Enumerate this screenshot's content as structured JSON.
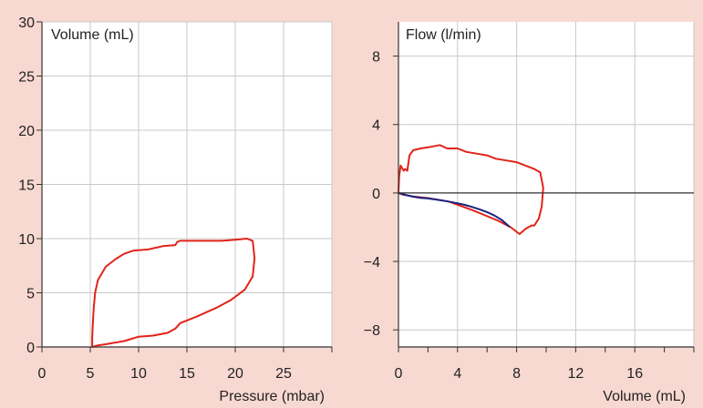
{
  "chart_data": [
    {
      "type": "line",
      "title": "",
      "xlabel": "Pressure (mbar)",
      "ylabel": "Volume (mL)",
      "xlim": [
        0,
        30
      ],
      "ylim": [
        0,
        30
      ],
      "xticks": [
        0,
        5,
        10,
        15,
        20,
        25
      ],
      "xtick_labels": [
        "0",
        "5",
        "10",
        "15",
        "20",
        "25"
      ],
      "yticks": [
        0,
        5,
        10,
        15,
        20,
        25,
        30
      ],
      "ytick_labels": [
        "0",
        "5",
        "10",
        "15",
        "20",
        "25",
        "30"
      ],
      "grid": true,
      "series": [
        {
          "color": "#e2231a",
          "x": [
            5.2,
            5.8,
            6.6,
            8.5,
            10,
            11.5,
            13,
            13.8,
            14.3,
            16,
            18,
            19.5,
            21,
            21.8,
            22,
            21.8,
            21.2,
            20,
            18.6,
            17.3,
            16.3,
            15.2,
            14.3,
            14,
            13.8,
            12.5,
            11,
            9.5,
            8.5,
            7.6,
            6.6,
            5.8,
            5.5,
            5.35,
            5.25,
            5.2,
            5.2
          ],
          "y": [
            0,
            0.15,
            0.25,
            0.55,
            0.95,
            1.05,
            1.3,
            1.7,
            2.2,
            2.8,
            3.6,
            4.3,
            5.3,
            6.5,
            8.2,
            9.8,
            10,
            9.9,
            9.8,
            9.8,
            9.8,
            9.8,
            9.8,
            9.7,
            9.4,
            9.3,
            9,
            8.9,
            8.6,
            8.1,
            7.4,
            6.2,
            5.0,
            3.5,
            2.0,
            0.8,
            0
          ]
        }
      ]
    },
    {
      "type": "line",
      "title": "",
      "xlabel": "Volume (mL)",
      "ylabel": "Flow (l/min)",
      "xlim": [
        0,
        20
      ],
      "ylim": [
        -9,
        10
      ],
      "xticks": [
        0,
        4,
        8,
        12,
        16
      ],
      "xtick_labels": [
        "0",
        "4",
        "8",
        "12",
        "16"
      ],
      "yticks": [
        -8,
        -4,
        0,
        4,
        8
      ],
      "ytick_labels": [
        "−8",
        "−4",
        "0",
        "4",
        "8"
      ],
      "grid": true,
      "series": [
        {
          "color": "#e2231a",
          "x": [
            0,
            0.05,
            0.15,
            0.35,
            0.45,
            0.6,
            0.75,
            1.0,
            1.5,
            2.2,
            2.8,
            3.3,
            4.0,
            4.6,
            5.3,
            6.0,
            6.6,
            7.3,
            8.0,
            8.6,
            9.2,
            9.6,
            9.8,
            9.7,
            9.5,
            9.2,
            9.0,
            8.6,
            8.2,
            7.6,
            6.7,
            5.0,
            3.4,
            2.0,
            1.0,
            0.3,
            0
          ],
          "y": [
            0,
            1.0,
            1.6,
            1.3,
            1.4,
            1.3,
            2.2,
            2.5,
            2.6,
            2.7,
            2.8,
            2.6,
            2.6,
            2.4,
            2.3,
            2.2,
            2.0,
            1.9,
            1.8,
            1.6,
            1.4,
            1.2,
            0.3,
            -0.8,
            -1.5,
            -1.9,
            -1.9,
            -2.1,
            -2.4,
            -2.0,
            -1.6,
            -1.0,
            -0.5,
            -0.3,
            -0.2,
            -0.1,
            0
          ]
        },
        {
          "color": "#1a237e",
          "x": [
            0,
            0.5,
            1.0,
            1.5,
            2.0,
            2.5,
            3.0,
            3.5,
            4.0,
            4.5,
            5.0,
            5.5,
            6.0,
            6.5,
            7.0,
            7.5
          ],
          "y": [
            0,
            -0.12,
            -0.22,
            -0.28,
            -0.32,
            -0.38,
            -0.44,
            -0.52,
            -0.6,
            -0.7,
            -0.82,
            -0.96,
            -1.12,
            -1.32,
            -1.58,
            -1.96
          ]
        }
      ]
    }
  ]
}
